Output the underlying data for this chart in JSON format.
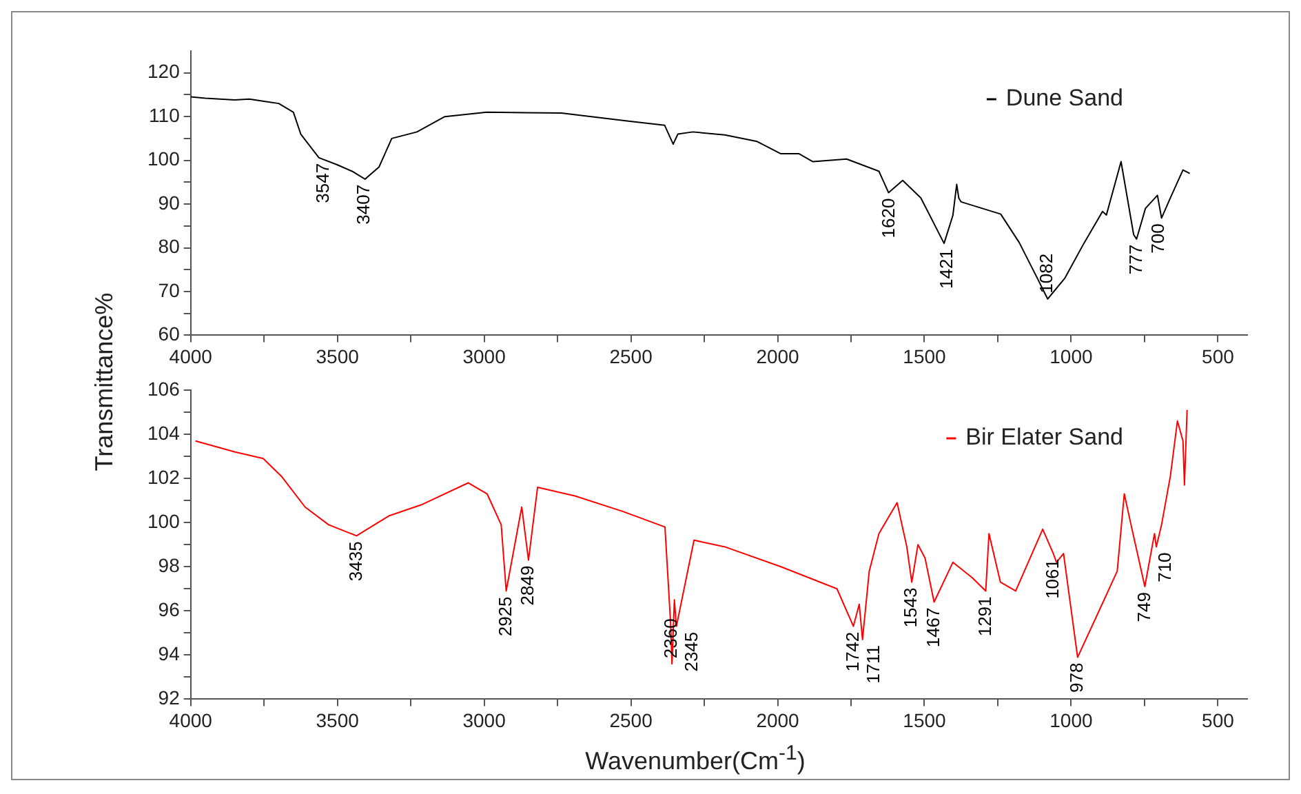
{
  "chart_data": [
    {
      "type": "line",
      "ylabel": "Transmittance%",
      "legend": "top right",
      "grid": false,
      "marker": "none",
      "line_style": "solid",
      "xlim": [
        4000,
        400
      ],
      "xticks": [
        4000,
        {
          "value": 3750,
          "label": null
        },
        3500,
        {
          "value": 3250,
          "label": null
        },
        3000,
        {
          "value": 2750,
          "label": null
        },
        2500,
        {
          "value": 2250,
          "label": null
        },
        2000,
        {
          "value": 1750,
          "label": null
        },
        1500,
        {
          "value": 1250,
          "label": null
        },
        1000,
        {
          "value": 750,
          "label": null
        },
        500
      ],
      "ylim": [
        60,
        125
      ],
      "yticks": [
        60,
        {
          "value": 65,
          "label": null
        },
        70,
        {
          "value": 75,
          "label": null
        },
        80,
        {
          "value": 85,
          "label": null
        },
        90,
        {
          "value": 95,
          "label": null
        },
        100,
        {
          "value": 105,
          "label": null
        },
        110,
        {
          "value": 115,
          "label": null
        },
        120
      ],
      "series": [
        {
          "name": "Dune Sand",
          "color": "#000000",
          "x": [
            4000,
            3950,
            3900,
            3850,
            3800,
            3750,
            3700,
            3650,
            3625,
            3563,
            3501,
            3450,
            3406,
            3358,
            3315,
            3229,
            3134,
            2991,
            2737,
            2513,
            2385,
            2356,
            2340,
            2289,
            2180,
            2070,
            1989,
            1927,
            1880,
            1765,
            1655,
            1622,
            1574,
            1512,
            1433,
            1403,
            1390,
            1383,
            1375,
            1240,
            1177,
            1115,
            1080,
            1022,
            955,
            893,
            880,
            830,
            787,
            777,
            747,
            706,
            692,
            662,
            619,
            596
          ],
          "values": [
            114.5,
            114.2,
            114,
            113.8,
            114,
            113.5,
            113,
            111,
            106,
            100.6,
            99,
            97.5,
            95.7,
            98.5,
            105,
            106.5,
            110,
            111,
            110.8,
            109,
            108,
            103.7,
            106,
            106.5,
            105.8,
            104.3,
            101.5,
            101.5,
            99.7,
            100.3,
            97.5,
            92.6,
            95.4,
            91.4,
            81,
            87.4,
            94.5,
            91.4,
            90.5,
            87.7,
            81.2,
            73,
            68.3,
            73,
            81.2,
            88.3,
            87.5,
            99.7,
            83,
            82,
            89,
            92,
            86.8,
            91.4,
            97.8,
            97
          ]
        }
      ],
      "annotations": [
        {
          "text": "3547",
          "x": 3547,
          "y": 100.6
        },
        {
          "text": "3407",
          "x": 3407,
          "y": 95.7
        },
        {
          "text": "1620",
          "x": 1620,
          "y": 92.6
        },
        {
          "text": "1421",
          "x": 1421,
          "y": 81
        },
        {
          "text": "1082",
          "x": 1082,
          "y": 68.3
        },
        {
          "text": "777",
          "x": 777,
          "y": 82
        },
        {
          "text": "700",
          "x": 700,
          "y": 86.8
        }
      ]
    },
    {
      "type": "line",
      "xlabel": "Wavenumber(Cm$^{-1}$)",
      "legend": "top right",
      "grid": false,
      "marker": "none",
      "line_style": "solid",
      "xlim": [
        4000,
        400
      ],
      "xticks": [
        4000,
        {
          "value": 3750,
          "label": null
        },
        3500,
        {
          "value": 3250,
          "label": null
        },
        3000,
        {
          "value": 2750,
          "label": null
        },
        2500,
        {
          "value": 2250,
          "label": null
        },
        2000,
        {
          "value": 1750,
          "label": null
        },
        1500,
        {
          "value": 1250,
          "label": null
        },
        1000,
        {
          "value": 750,
          "label": null
        },
        500
      ],
      "ylim": [
        92,
        106
      ],
      "yticks": [
        92,
        {
          "value": 93,
          "label": null
        },
        94,
        {
          "value": 95,
          "label": null
        },
        96,
        {
          "value": 97,
          "label": null
        },
        98,
        {
          "value": 99,
          "label": null
        },
        100,
        {
          "value": 101,
          "label": null
        },
        102,
        {
          "value": 103,
          "label": null
        },
        104,
        {
          "value": 105,
          "label": null
        },
        106
      ],
      "series": [
        {
          "name": "Bir Elater Sand",
          "color": "#ff0000",
          "x": [
            3984,
            3849,
            3753,
            3691,
            3610,
            3530,
            3435,
            3325,
            3215,
            3054,
            2990,
            2942,
            2925,
            2872,
            2849,
            2818,
            2689,
            2527,
            2384,
            2365,
            2360,
            2352,
            2345,
            2285,
            2180,
            1989,
            1798,
            1742,
            1722,
            1711,
            1688,
            1655,
            1593,
            1560,
            1543,
            1522,
            1498,
            1467,
            1403,
            1337,
            1291,
            1280,
            1241,
            1189,
            1097,
            1061,
            1050,
            1026,
            978,
            905,
            843,
            819,
            796,
            749,
            716,
            710,
            692,
            662,
            638,
            619,
            614,
            605
          ],
          "values": [
            103.7,
            103.2,
            102.9,
            102.1,
            100.7,
            99.9,
            99.4,
            100.3,
            100.8,
            101.8,
            101.3,
            99.9,
            96.9,
            100.7,
            98.3,
            101.6,
            101.2,
            100.5,
            99.8,
            95.5,
            93.6,
            96.5,
            95.3,
            99.2,
            98.9,
            98,
            97,
            95.3,
            96.3,
            94.7,
            97.8,
            99.5,
            100.9,
            98.9,
            97.3,
            99,
            98.4,
            96.4,
            98.2,
            97.5,
            96.9,
            99.5,
            97.3,
            96.9,
            99.7,
            98.6,
            98.2,
            98.6,
            93.9,
            96,
            97.8,
            101.3,
            99.9,
            97.1,
            99.5,
            98.9,
            99.9,
            102.1,
            104.6,
            103.7,
            101.7,
            105.1
          ]
        }
      ],
      "annotations": [
        {
          "text": "3435",
          "x": 3435,
          "y": 99.4
        },
        {
          "text": "2925",
          "x": 2925,
          "y": 96.9
        },
        {
          "text": "2849",
          "x": 2849,
          "y": 98.3
        },
        {
          "text": "2360",
          "x": 2360,
          "y": 93.6
        },
        {
          "text": "2345",
          "x": 2345,
          "y": 95.3
        },
        {
          "text": "1742",
          "x": 1742,
          "y": 95.3
        },
        {
          "text": "1711",
          "x": 1711,
          "y": 94.7
        },
        {
          "text": "1543",
          "x": 1543,
          "y": 97.3
        },
        {
          "text": "1467",
          "x": 1467,
          "y": 96.4
        },
        {
          "text": "1291",
          "x": 1291,
          "y": 96.9
        },
        {
          "text": "1061",
          "x": 1061,
          "y": 98.6
        },
        {
          "text": "978",
          "x": 978,
          "y": 93.9
        },
        {
          "text": "749",
          "x": 749,
          "y": 97.1
        },
        {
          "text": "710",
          "x": 710,
          "y": 98.9
        }
      ]
    }
  ]
}
